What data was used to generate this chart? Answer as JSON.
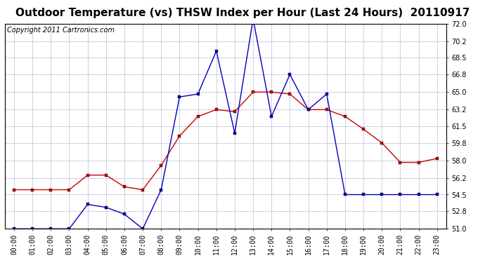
{
  "title": "Outdoor Temperature (vs) THSW Index per Hour (Last 24 Hours)  20110917",
  "copyright": "Copyright 2011 Cartronics.com",
  "hours": [
    "00:00",
    "01:00",
    "02:00",
    "03:00",
    "04:00",
    "05:00",
    "06:00",
    "07:00",
    "08:00",
    "09:00",
    "10:00",
    "11:00",
    "12:00",
    "13:00",
    "14:00",
    "15:00",
    "16:00",
    "17:00",
    "18:00",
    "19:00",
    "20:00",
    "21:00",
    "22:00",
    "23:00"
  ],
  "temp_red": [
    55.0,
    55.0,
    55.0,
    55.0,
    56.5,
    56.5,
    55.3,
    55.0,
    57.5,
    60.5,
    62.5,
    63.2,
    63.0,
    65.0,
    65.0,
    64.8,
    63.2,
    63.2,
    62.5,
    61.2,
    59.8,
    57.8,
    57.8,
    58.2
  ],
  "thsw_blue": [
    51.0,
    51.0,
    51.0,
    51.0,
    53.5,
    53.2,
    52.5,
    51.0,
    55.0,
    64.5,
    64.8,
    69.2,
    60.8,
    72.5,
    62.5,
    66.8,
    63.2,
    64.8,
    54.5,
    54.5,
    54.5,
    54.5,
    54.5,
    54.5
  ],
  "ylim_min": 51.0,
  "ylim_max": 72.0,
  "yticks": [
    51.0,
    52.8,
    54.5,
    56.2,
    58.0,
    59.8,
    61.5,
    63.2,
    65.0,
    66.8,
    68.5,
    70.2,
    72.0
  ],
  "red_color": "#cc0000",
  "blue_color": "#0000bb",
  "grid_color": "#bbbbdd",
  "bg_color": "#ffffff",
  "plot_bg": "#ffffff",
  "title_fontsize": 11,
  "copyright_fontsize": 7,
  "tick_fontsize": 7,
  "marker_style": "s",
  "marker_size": 2.5,
  "line_width": 1.0
}
